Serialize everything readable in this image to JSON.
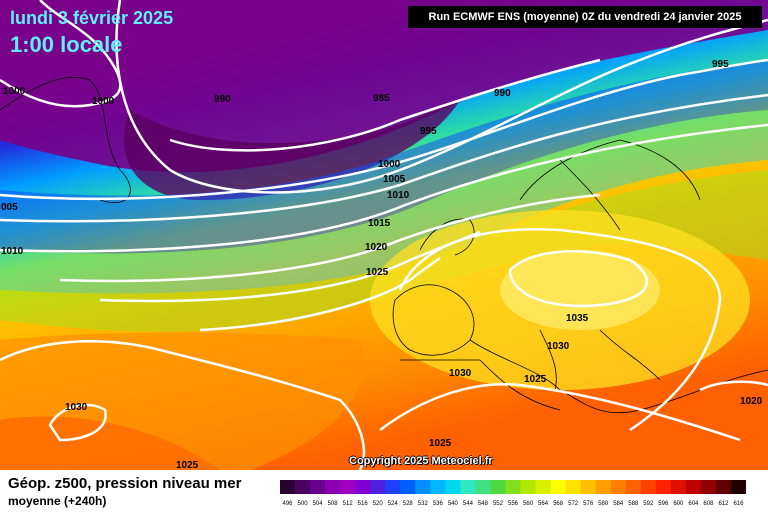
{
  "header": {
    "date": "lundi 3 février 2025",
    "time": "1:00 locale",
    "run": "Run ECMWF ENS (moyenne) 0Z du vendredi 24 janvier 2025",
    "copyright": "Copyright 2025 Meteociel.fr"
  },
  "footer": {
    "title": "Géop. z500, pression niveau mer",
    "subtitle": "moyenne   (+240h)"
  },
  "legend": {
    "values": [
      "496",
      "500",
      "504",
      "508",
      "512",
      "516",
      "520",
      "524",
      "528",
      "532",
      "536",
      "540",
      "544",
      "548",
      "552",
      "556",
      "560",
      "564",
      "568",
      "572",
      "576",
      "580",
      "584",
      "588",
      "592",
      "596",
      "600",
      "604",
      "608",
      "612",
      "616"
    ],
    "colors": [
      "#2a0030",
      "#4a0060",
      "#6a0090",
      "#8a00b0",
      "#a000c0",
      "#8000d0",
      "#5020e0",
      "#2040ff",
      "#0060ff",
      "#0090ff",
      "#00b8ff",
      "#00d8f0",
      "#30e8c0",
      "#40e080",
      "#50d840",
      "#80e020",
      "#b0e800",
      "#d8f000",
      "#ffff00",
      "#ffe000",
      "#ffc000",
      "#ffa000",
      "#ff8000",
      "#ff6000",
      "#ff4000",
      "#ff2000",
      "#e01000",
      "#c00000",
      "#900000",
      "#600000",
      "#200000"
    ]
  },
  "pressure_labels": [
    "1000",
    "1000",
    "990",
    "985",
    "990",
    "995",
    "995",
    "1000",
    "1005",
    "1010",
    "005",
    "1010",
    "1015",
    "1020",
    "1025",
    "1035",
    "1030",
    "1030",
    "1025",
    "1030",
    "1025",
    "1020",
    "1025"
  ]
}
